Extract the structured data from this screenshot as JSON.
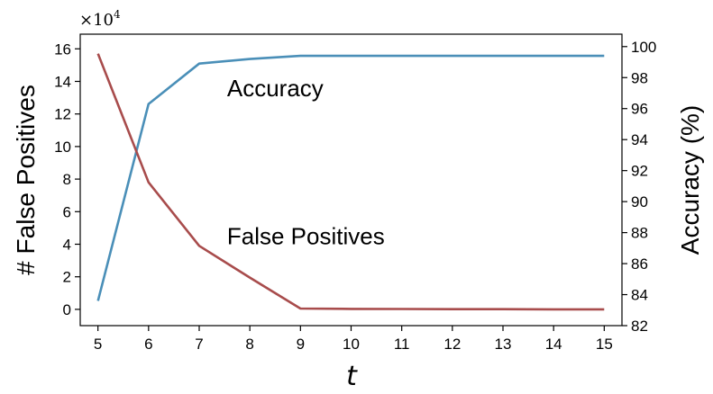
{
  "chart_data": {
    "type": "line",
    "title": "",
    "xlabel": "t",
    "ylabel_left": "# False Positives",
    "ylabel_right": "Accuracy (%)",
    "left_multiplier": {
      "base": "×10",
      "exponent": "4"
    },
    "x": [
      5,
      6,
      7,
      8,
      9,
      10,
      11,
      12,
      13,
      14,
      15
    ],
    "xlim": [
      4.65,
      15.35
    ],
    "ylim_left": [
      -1,
      16.9
    ],
    "ylim_right": [
      82,
      100.8
    ],
    "xticks": [
      5,
      6,
      7,
      8,
      9,
      10,
      11,
      12,
      13,
      14,
      15
    ],
    "yticks_left": [
      0,
      2,
      4,
      6,
      8,
      10,
      12,
      14,
      16
    ],
    "yticks_right": [
      82,
      84,
      86,
      88,
      90,
      92,
      94,
      96,
      98,
      100
    ],
    "grid": false,
    "series": [
      {
        "name": "Accuracy",
        "axis": "right",
        "color": "#4a8fb8",
        "values": [
          83.6,
          96.3,
          98.9,
          99.2,
          99.4,
          99.4,
          99.4,
          99.4,
          99.4,
          99.4,
          99.4
        ]
      },
      {
        "name": "False Positives",
        "axis": "left",
        "color": "#a84c4c",
        "values": [
          15.7,
          7.8,
          3.9,
          1.95,
          0.05,
          0.03,
          0.02,
          0.01,
          0.01,
          0.0,
          0.0
        ]
      }
    ],
    "annotations": [
      {
        "text": "Accuracy",
        "x": 7.55,
        "y_left": 13.1
      },
      {
        "text": "False Positives",
        "x": 7.55,
        "y_left": 4.0
      }
    ]
  }
}
